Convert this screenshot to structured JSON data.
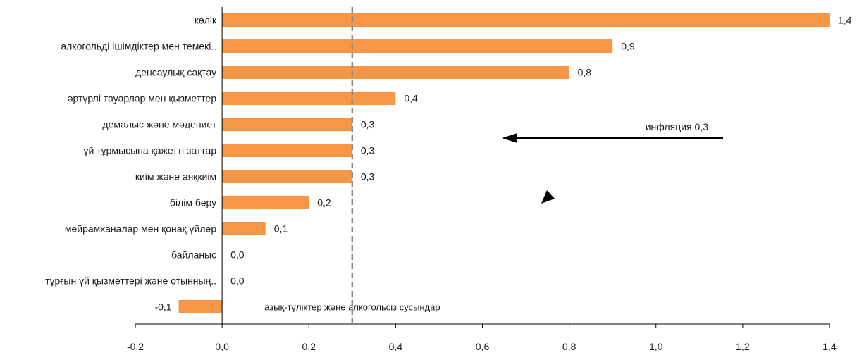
{
  "chart_data": {
    "type": "bar",
    "orientation": "horizontal",
    "categories": [
      "көлік",
      "алкогольді ішімдіктер мен темекі..",
      "денсаулық сақтау",
      "әртүрлі тауарлар мен қызметтер",
      "демалыс және мәдениет",
      "үй тұрмысына қажетті заттар",
      "киім және аяқкиім",
      "білім беру",
      "мейрамханалар мен қонақ үйлер",
      "байланыс",
      "тұрғын үй қызметтері және отынның..",
      "азық-түліктер және алкогольсіз сусындар"
    ],
    "values": [
      1.4,
      0.9,
      0.8,
      0.4,
      0.3,
      0.3,
      0.3,
      0.2,
      0.1,
      0.0,
      0.0,
      -0.1
    ],
    "value_labels": [
      "1,4",
      "0,9",
      "0,8",
      "0,4",
      "0,3",
      "0,3",
      "0,3",
      "0,2",
      "0,1",
      "0,0",
      "0,0",
      "-0,1"
    ],
    "xlim": [
      -0.2,
      1.4
    ],
    "xticks": [
      -0.2,
      0.0,
      0.2,
      0.4,
      0.6,
      0.8,
      1.0,
      1.2,
      1.4
    ],
    "xtick_labels": [
      "-0,2",
      "0,0",
      "0,2",
      "0,4",
      "0,6",
      "0,8",
      "1,0",
      "1,2",
      "1,4"
    ],
    "reference_line": {
      "value": 0.3,
      "style": "dashed",
      "color": "#8c8c8c"
    },
    "annotation": {
      "text": "инфляция 0,3",
      "arrow": "left"
    },
    "bar_color": "#f79646",
    "title": "",
    "xlabel": "",
    "ylabel": "",
    "grid": false,
    "legend": "none"
  }
}
